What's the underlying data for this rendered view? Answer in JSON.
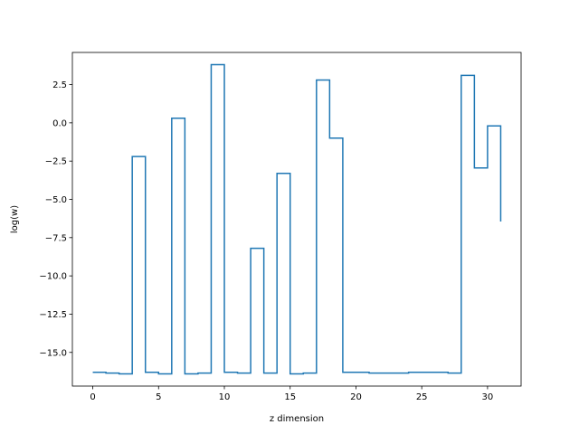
{
  "chart_data": {
    "type": "line",
    "step": "post",
    "title": "",
    "xlabel": "z dimension",
    "ylabel": "log(w)",
    "xlim": [
      -1.55,
      32.55
    ],
    "ylim": [
      -17.2,
      4.6
    ],
    "xticks": [
      0,
      5,
      10,
      15,
      20,
      25,
      30
    ],
    "yticks": [
      -15.0,
      -12.5,
      -10.0,
      -7.5,
      -5.0,
      -2.5,
      0.0,
      2.5
    ],
    "ytick_labels": [
      "−15.0",
      "−12.5",
      "−10.0",
      "−7.5",
      "−5.0",
      "−2.5",
      "0.0",
      "2.5"
    ],
    "grid": false,
    "legend": "none",
    "line_color": "#1f77b4",
    "series": [
      {
        "x": [
          0,
          1,
          2,
          3,
          4,
          5,
          6,
          7,
          8,
          9,
          10,
          11,
          12,
          13,
          14,
          15,
          16,
          17,
          18,
          19,
          20,
          21,
          22,
          23,
          24,
          25,
          26,
          27,
          28,
          29,
          30,
          31
        ],
        "values": [
          -16.3,
          -16.35,
          -16.4,
          -2.2,
          -16.3,
          -16.4,
          0.3,
          -16.4,
          -16.35,
          3.8,
          -16.3,
          -16.35,
          -8.2,
          -16.35,
          -3.3,
          -16.4,
          -16.35,
          2.8,
          -1.0,
          -16.3,
          -16.3,
          -16.35,
          -16.35,
          -16.35,
          -16.3,
          -16.3,
          -16.3,
          -16.35,
          3.1,
          -2.95,
          -0.2,
          -6.45
        ]
      }
    ]
  }
}
